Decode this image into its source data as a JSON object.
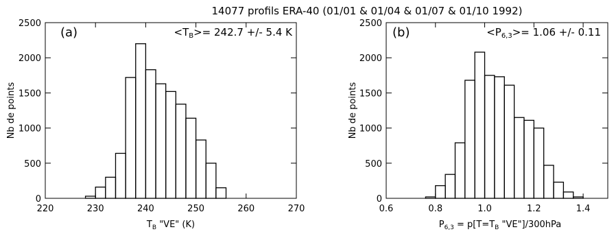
{
  "figure": {
    "title": "14077 profils ERA-40 (01/01 & 01/04 & 01/07 & 01/10 1992)"
  },
  "chart_data": [
    {
      "type": "bar",
      "panel_label": "(a)",
      "annotation": {
        "prefix": "<T",
        "sub": "B",
        "suffix": ">= 242.7 +/- 5.4 K"
      },
      "xlabel": {
        "main": "T",
        "sub": "B",
        "rest": " \"VE\" (K)"
      },
      "ylabel": "Nb de points",
      "xlim": [
        220,
        270
      ],
      "ylim": [
        0,
        2500
      ],
      "xticks": [
        220,
        230,
        240,
        250,
        260,
        270
      ],
      "xtick_labels": [
        "220",
        "230",
        "240",
        "250",
        "260",
        "270"
      ],
      "yticks": [
        0,
        500,
        1000,
        1500,
        2000,
        2500
      ],
      "ytick_labels": [
        "0",
        "500",
        "1000",
        "1500",
        "2000",
        "2500"
      ],
      "bin_width": 2,
      "bin_starts": [
        228,
        230,
        232,
        234,
        236,
        238,
        240,
        242,
        244,
        246,
        248,
        250,
        252,
        254
      ],
      "values": [
        30,
        160,
        300,
        640,
        1720,
        2200,
        1830,
        1630,
        1520,
        1340,
        1140,
        830,
        500,
        150
      ]
    },
    {
      "type": "bar",
      "panel_label": "(b)",
      "annotation": {
        "prefix": "<P",
        "sub": "6,3",
        "suffix": ">= 1.06 +/- 0.11"
      },
      "xlabel": {
        "main": "P",
        "sub": "6,3",
        "rest": " = p[T=T",
        "sub2": "B",
        "rest2": " \"VE\"]/300hPa"
      },
      "ylabel": "Nb de points",
      "xlim": [
        0.6,
        1.5
      ],
      "ylim": [
        0,
        2500
      ],
      "xticks": [
        0.6,
        0.8,
        1.0,
        1.2,
        1.4
      ],
      "xtick_labels": [
        "0.6",
        "0.8",
        "1.0",
        "1.2",
        "1.4"
      ],
      "yticks": [
        0,
        500,
        1000,
        1500,
        2000,
        2500
      ],
      "ytick_labels": [
        "0",
        "500",
        "1000",
        "1500",
        "2000",
        "2500"
      ],
      "bin_width": 0.04,
      "bin_starts": [
        0.76,
        0.8,
        0.84,
        0.88,
        0.92,
        0.96,
        1.0,
        1.04,
        1.08,
        1.12,
        1.16,
        1.2,
        1.24,
        1.28,
        1.32,
        1.36
      ],
      "values": [
        20,
        180,
        340,
        790,
        1680,
        2080,
        1750,
        1730,
        1610,
        1150,
        1110,
        1000,
        470,
        230,
        90,
        20
      ]
    }
  ]
}
